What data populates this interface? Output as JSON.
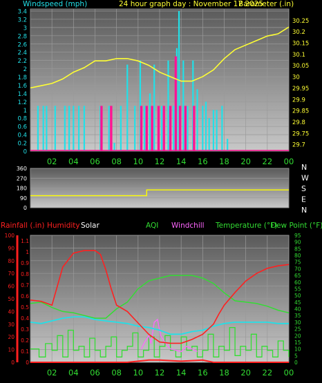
{
  "header": {
    "windspeed_label": "Windspeed (mph)",
    "title": "24 hour graph day : November 17 2025",
    "barometer_label": "Barometer (.in)"
  },
  "bottom_header": {
    "rainfall": "Rainfall (.in)",
    "humidity": "Humidity",
    "solar": "Solar",
    "aqi": "AQI",
    "windchill": "Windchill",
    "temperature": "Temperature (°F)",
    "dewpoint": "Dew Point (°F)"
  },
  "colors": {
    "wind_gust": "#ff1493",
    "wind_avg": "#22e0e8",
    "barometer": "#ffff33",
    "wind_dir": "#ffff00",
    "humidity": "#ff2020",
    "temperature": "#33dd33",
    "dewpoint": "#22e0e8",
    "solar": "#33dd33",
    "windchill": "#ff66ff",
    "rainfall": "#ff2020"
  },
  "chart_data": [
    {
      "type": "line",
      "name": "wind-barometer",
      "x_ticks": [
        "02",
        "04",
        "06",
        "08",
        "10",
        "12",
        "14",
        "16",
        "18",
        "20",
        "22",
        "00"
      ],
      "y_left_ticks": [
        "0",
        "0.2",
        "0.4",
        "0.6",
        "0.8",
        "1",
        "1.2",
        "1.4",
        "1.6",
        "1.8",
        "2",
        "2.2",
        "2.4",
        "2.6",
        "2.8",
        "3",
        "3.2",
        "3.4"
      ],
      "y_right_ticks": [
        "29.7",
        "29.75",
        "29.8",
        "29.85",
        "29.9",
        "29.95",
        "30",
        "30.05",
        "30.1",
        "30.15",
        "30.2",
        "30.25"
      ],
      "ylim_left": [
        0,
        3.45
      ],
      "ylim_right": [
        29.67,
        30.3
      ],
      "barometer": {
        "x": [
          0,
          1,
          2,
          3,
          4,
          5,
          6,
          7,
          8,
          9,
          10,
          11,
          12,
          13,
          14,
          15,
          16,
          17,
          18,
          19,
          20,
          21,
          22,
          23,
          24
        ],
        "y": [
          29.95,
          29.96,
          29.97,
          29.99,
          30.02,
          30.04,
          30.07,
          30.07,
          30.08,
          30.08,
          30.07,
          30.05,
          30.02,
          30.0,
          29.98,
          29.98,
          30.0,
          30.03,
          30.08,
          30.12,
          30.14,
          30.16,
          30.18,
          30.19,
          30.22
        ]
      },
      "wind_avg": {
        "x": [
          0.7,
          1.2,
          1.5,
          2.3,
          3.2,
          3.6,
          4.0,
          4.5,
          5.0,
          6.5,
          7.3,
          7.8,
          8.4,
          9.0,
          9.7,
          10.2,
          10.6,
          11.1,
          11.5,
          12.2,
          12.8,
          13.3,
          13.6,
          13.8,
          14.2,
          14.6,
          15.1,
          15.5,
          16.0,
          16.3,
          16.6,
          17.0,
          17.3,
          17.8,
          18.3
        ],
        "y": [
          1.1,
          1.1,
          1.1,
          1.1,
          1.1,
          1.1,
          1.1,
          1.1,
          1.1,
          1.1,
          1.1,
          0.2,
          1.1,
          2.1,
          1.1,
          2.2,
          1.1,
          1.4,
          2.1,
          1.1,
          2.2,
          1.1,
          2.5,
          3.4,
          2.2,
          1.1,
          2.2,
          1.5,
          1.1,
          1.2,
          0.8,
          1.0,
          1.0,
          1.1,
          0.3
        ]
      },
      "wind_gust": {
        "x": [
          6.6,
          7.5,
          10.3,
          10.8,
          11.3,
          11.9,
          12.4,
          13.0,
          13.5,
          13.9,
          14.4,
          15.2
        ],
        "y": [
          1.1,
          1.1,
          1.1,
          1.1,
          1.1,
          1.1,
          1.1,
          1.1,
          2.3,
          1.1,
          1.1,
          1.1
        ]
      }
    },
    {
      "type": "line",
      "name": "wind-direction",
      "y_ticks": [
        "0",
        "90",
        "180",
        "270",
        "360"
      ],
      "compass": [
        "N",
        "W",
        "S",
        "E",
        "N"
      ],
      "ylim": [
        0,
        360
      ],
      "x": [
        0,
        10.8,
        10.8,
        24
      ],
      "y": [
        110,
        110,
        163,
        163
      ]
    },
    {
      "type": "line",
      "name": "temp-humidity",
      "y_left_ticks": [
        "0",
        "10",
        "20",
        "30",
        "40",
        "50",
        "60",
        "70",
        "80",
        "90",
        "100"
      ],
      "y_rain_ticks": [
        "0",
        "0.1",
        "0.2",
        "0.3",
        "0.4",
        "0.5",
        "0.6",
        "0.7",
        "0.8",
        "0.9",
        "1",
        "1.1"
      ],
      "y_right_ticks": [
        "0",
        "5",
        "10",
        "15",
        "20",
        "25",
        "30",
        "35",
        "40",
        "45",
        "50",
        "55",
        "60",
        "65",
        "70",
        "75",
        "80",
        "85",
        "90",
        "95"
      ],
      "ylim_left": [
        0,
        100
      ],
      "ylim_right": [
        0,
        95
      ],
      "humidity": {
        "x": [
          0,
          1,
          2,
          3,
          4,
          5,
          6,
          6.5,
          7,
          7.5,
          8,
          9,
          10,
          11,
          12,
          13,
          14,
          15,
          16,
          17,
          17.5,
          18,
          19,
          20,
          21,
          22,
          23,
          24
        ],
        "y": [
          49,
          48,
          45,
          75,
          86,
          88,
          88,
          85,
          73,
          58,
          45,
          40,
          31,
          22,
          16,
          15,
          15,
          18,
          22,
          30,
          38,
          45,
          55,
          64,
          70,
          74,
          76,
          77
        ]
      },
      "temperature": {
        "x": [
          0,
          1,
          2,
          3,
          4,
          5,
          6,
          7,
          8,
          9,
          10,
          11,
          12,
          13,
          14,
          15,
          16,
          17,
          18,
          19,
          20,
          21,
          22,
          23,
          24
        ],
        "y": [
          44,
          45,
          41,
          38,
          37,
          35,
          33,
          33,
          40,
          45,
          55,
          61,
          63,
          65,
          65,
          65,
          63,
          59,
          52,
          46,
          45,
          44,
          42,
          39,
          37
        ]
      },
      "dewpoint": {
        "x": [
          0,
          1,
          2,
          3,
          4,
          5,
          6,
          7,
          8,
          9,
          10,
          11,
          12,
          13,
          14,
          15,
          16,
          17,
          18,
          19,
          20,
          21,
          22,
          23,
          24
        ],
        "y": [
          30,
          29,
          31,
          33,
          34,
          34,
          32,
          31,
          30,
          29,
          27,
          26,
          24,
          21,
          21,
          23,
          24,
          27,
          29,
          30,
          30,
          30,
          30,
          29,
          29
        ]
      },
      "windchill": {
        "x": [
          10.3,
          10.6,
          11.0,
          11.2,
          11.5,
          11.8,
          12.1,
          12.5,
          13.0,
          13.5,
          14.0,
          14.5,
          15.0,
          15.5
        ],
        "y": [
          10,
          15,
          20,
          14,
          30,
          32,
          20,
          15,
          10,
          9,
          8,
          12,
          10,
          8
        ]
      },
      "solar": {
        "x": [
          0,
          0.8,
          1.4,
          2,
          2.5,
          3,
          3.5,
          4,
          4.5,
          5,
          5.5,
          6,
          6.5,
          7,
          7.5,
          8,
          8.5,
          9,
          9.5,
          10,
          10.5,
          11,
          11.5,
          12,
          12.5,
          13,
          13.5,
          14,
          14.5,
          15,
          15.5,
          16,
          16.5,
          17,
          17.5,
          18,
          18.5,
          19,
          19.5,
          20,
          20.5,
          21,
          21.5,
          22,
          22.5,
          23,
          23.5,
          24
        ],
        "y": [
          10,
          4,
          14,
          9,
          20,
          4,
          24,
          9,
          12,
          4,
          18,
          9,
          4,
          12,
          19,
          4,
          9,
          12,
          22,
          4,
          9,
          19,
          4,
          12,
          20,
          9,
          4,
          19,
          9,
          12,
          4,
          9,
          21,
          4,
          12,
          9,
          26,
          5,
          12,
          9,
          21,
          4,
          12,
          9,
          4,
          16,
          9,
          4
        ]
      },
      "rainfall": {
        "x": [
          0,
          9,
          10,
          11,
          12,
          14,
          16,
          17,
          24
        ],
        "y": [
          0,
          0,
          0.01,
          0.02,
          0.02,
          0.01,
          0.02,
          0,
          0
        ]
      }
    }
  ]
}
